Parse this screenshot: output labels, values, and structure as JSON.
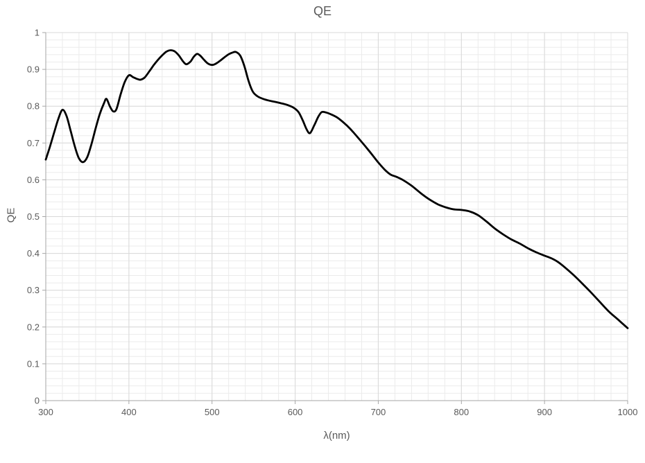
{
  "chart_data": {
    "type": "line",
    "title": "QE",
    "xlabel": "λ(nm)",
    "ylabel": "QE",
    "xlim": [
      300,
      1000
    ],
    "ylim": [
      0,
      1
    ],
    "x_major_step": 100,
    "y_major_step": 0.1,
    "x_minor_step": 20,
    "y_minor_step": 0.02,
    "x_tick_labels": [
      "300",
      "400",
      "500",
      "600",
      "700",
      "800",
      "900",
      "1000"
    ],
    "y_tick_labels": [
      "0",
      "0.1",
      "0.2",
      "0.3",
      "0.4",
      "0.5",
      "0.6",
      "0.7",
      "0.8",
      "0.9",
      "1"
    ],
    "grid": true,
    "legend_position": "none",
    "colors": {
      "line": "#000000",
      "major_grid": "#d9d9d9",
      "minor_grid": "#ebebeb",
      "axis": "#a6a6a6",
      "text": "#595959",
      "background": "#ffffff"
    },
    "series": [
      {
        "name": "QE",
        "points": [
          [
            300,
            0.655
          ],
          [
            305,
            0.69
          ],
          [
            310,
            0.728
          ],
          [
            315,
            0.765
          ],
          [
            320,
            0.79
          ],
          [
            325,
            0.773
          ],
          [
            330,
            0.732
          ],
          [
            335,
            0.69
          ],
          [
            340,
            0.658
          ],
          [
            345,
            0.648
          ],
          [
            350,
            0.662
          ],
          [
            355,
            0.697
          ],
          [
            360,
            0.74
          ],
          [
            365,
            0.779
          ],
          [
            370,
            0.808
          ],
          [
            373,
            0.82
          ],
          [
            377,
            0.8
          ],
          [
            381,
            0.786
          ],
          [
            385,
            0.792
          ],
          [
            390,
            0.832
          ],
          [
            395,
            0.866
          ],
          [
            400,
            0.884
          ],
          [
            405,
            0.879
          ],
          [
            410,
            0.874
          ],
          [
            414,
            0.872
          ],
          [
            419,
            0.878
          ],
          [
            425,
            0.896
          ],
          [
            430,
            0.912
          ],
          [
            435,
            0.926
          ],
          [
            440,
            0.938
          ],
          [
            445,
            0.948
          ],
          [
            450,
            0.952
          ],
          [
            455,
            0.949
          ],
          [
            460,
            0.938
          ],
          [
            465,
            0.922
          ],
          [
            469,
            0.914
          ],
          [
            474,
            0.921
          ],
          [
            478,
            0.934
          ],
          [
            482,
            0.942
          ],
          [
            486,
            0.937
          ],
          [
            490,
            0.927
          ],
          [
            495,
            0.916
          ],
          [
            500,
            0.912
          ],
          [
            505,
            0.916
          ],
          [
            510,
            0.924
          ],
          [
            515,
            0.933
          ],
          [
            520,
            0.941
          ],
          [
            525,
            0.946
          ],
          [
            529,
            0.947
          ],
          [
            534,
            0.937
          ],
          [
            539,
            0.908
          ],
          [
            544,
            0.868
          ],
          [
            549,
            0.84
          ],
          [
            554,
            0.828
          ],
          [
            560,
            0.821
          ],
          [
            567,
            0.816
          ],
          [
            575,
            0.812
          ],
          [
            583,
            0.808
          ],
          [
            591,
            0.803
          ],
          [
            598,
            0.796
          ],
          [
            604,
            0.784
          ],
          [
            609,
            0.762
          ],
          [
            614,
            0.736
          ],
          [
            618,
            0.727
          ],
          [
            623,
            0.748
          ],
          [
            628,
            0.772
          ],
          [
            632,
            0.784
          ],
          [
            637,
            0.783
          ],
          [
            643,
            0.778
          ],
          [
            650,
            0.77
          ],
          [
            658,
            0.756
          ],
          [
            666,
            0.739
          ],
          [
            675,
            0.716
          ],
          [
            684,
            0.692
          ],
          [
            692,
            0.67
          ],
          [
            700,
            0.647
          ],
          [
            708,
            0.627
          ],
          [
            715,
            0.614
          ],
          [
            722,
            0.608
          ],
          [
            730,
            0.599
          ],
          [
            740,
            0.584
          ],
          [
            752,
            0.562
          ],
          [
            762,
            0.546
          ],
          [
            772,
            0.533
          ],
          [
            780,
            0.526
          ],
          [
            790,
            0.52
          ],
          [
            800,
            0.518
          ],
          [
            810,
            0.514
          ],
          [
            820,
            0.504
          ],
          [
            830,
            0.487
          ],
          [
            840,
            0.468
          ],
          [
            850,
            0.452
          ],
          [
            860,
            0.438
          ],
          [
            870,
            0.427
          ],
          [
            880,
            0.414
          ],
          [
            890,
            0.403
          ],
          [
            900,
            0.394
          ],
          [
            908,
            0.387
          ],
          [
            916,
            0.377
          ],
          [
            925,
            0.361
          ],
          [
            935,
            0.341
          ],
          [
            945,
            0.319
          ],
          [
            955,
            0.296
          ],
          [
            965,
            0.272
          ],
          [
            977,
            0.243
          ],
          [
            988,
            0.221
          ],
          [
            1000,
            0.197
          ]
        ]
      }
    ]
  }
}
